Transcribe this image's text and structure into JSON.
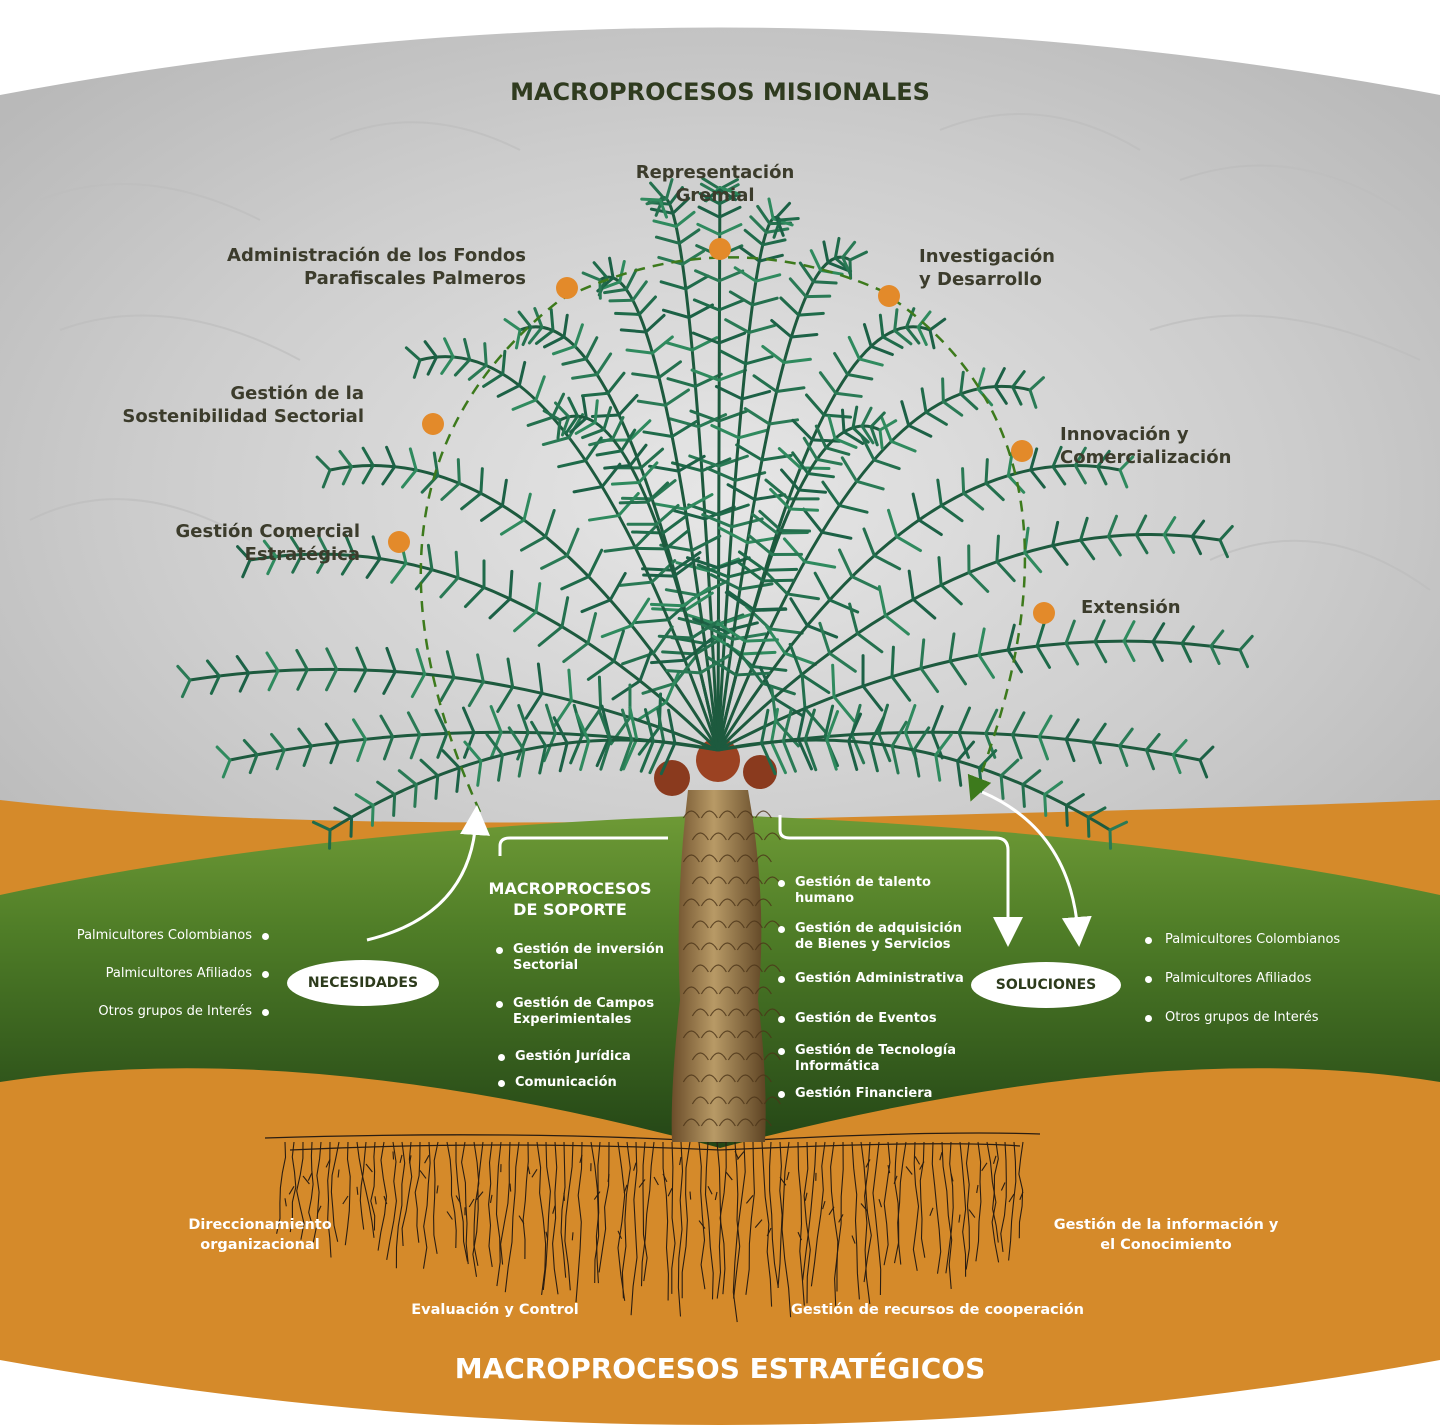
{
  "colors": {
    "background": "#ffffff",
    "sky": "#cfcfcf",
    "orange": "#d58a2a",
    "green_dark": "#2c5119",
    "green_light": "#5e8a2f",
    "orange_dot": "#e38a2a",
    "arc_green": "#3d7a1c",
    "title_dark": "#2f3b1f",
    "label_text": "#3c3c2c",
    "pill_text": "#2d3b1c"
  },
  "icons": {
    "tree": "palm-tree-illustration",
    "roots": "root-system",
    "arrows": "white-curved-arrows"
  },
  "misionales": {
    "title": "MACROPROCESOS MISIONALES",
    "items": [
      {
        "line1": "Representación",
        "line2": "Gremial"
      },
      {
        "line1": "Administración de los Fondos",
        "line2": "Parafiscales Palmeros"
      },
      {
        "line1": "Investigación",
        "line2": "y Desarrollo"
      },
      {
        "line1": "Gestión de la",
        "line2": "Sostenibilidad Sectorial"
      },
      {
        "line1": "Innovación y",
        "line2": "Comercialización"
      },
      {
        "line1": "Gestión Comercial",
        "line2": "Estratégica"
      },
      {
        "line1": "Extensión",
        "line2": ""
      }
    ]
  },
  "soporte": {
    "title_line1": "MACROPROCESOS",
    "title_line2": "DE SOPORTE",
    "left_items": [
      {
        "line1": "Gestión de inversión",
        "line2": "Sectorial"
      },
      {
        "line1": "Gestión de Campos",
        "line2": "Experimientales"
      },
      {
        "line1": "Gestión Jurídica",
        "line2": ""
      },
      {
        "line1": "Comunicación",
        "line2": ""
      }
    ],
    "right_items": [
      {
        "line1": "Gestión de talento",
        "line2": "humano"
      },
      {
        "line1": "Gestión de adquisición",
        "line2": "de Bienes y Servicios"
      },
      {
        "line1": "Gestión Administrativa",
        "line2": ""
      },
      {
        "line1": "Gestión de Eventos",
        "line2": ""
      },
      {
        "line1": "Gestión de Tecnología",
        "line2": "Informática"
      },
      {
        "line1": "Gestión Financiera",
        "line2": ""
      }
    ]
  },
  "necesidades": {
    "label": "NECESIDADES",
    "stakeholders": [
      "Palmicultores Colombianos",
      "Palmicultores Afiliados",
      "Otros grupos de Interés"
    ]
  },
  "soluciones": {
    "label": "SOLUCIONES",
    "stakeholders": [
      "Palmicultores Colombianos",
      "Palmicultores Afiliados",
      "Otros grupos de Interés"
    ]
  },
  "estrategicos": {
    "title": "MACROPROCESOS ESTRATÉGICOS",
    "items": [
      {
        "line1": "Direccionamiento",
        "line2": "organizacional"
      },
      {
        "line1": "Gestión de la información y",
        "line2": "el Conocimiento"
      },
      {
        "line1": "Evaluación y Control",
        "line2": ""
      },
      {
        "line1": "Gestión de recursos de cooperación",
        "line2": ""
      }
    ]
  }
}
